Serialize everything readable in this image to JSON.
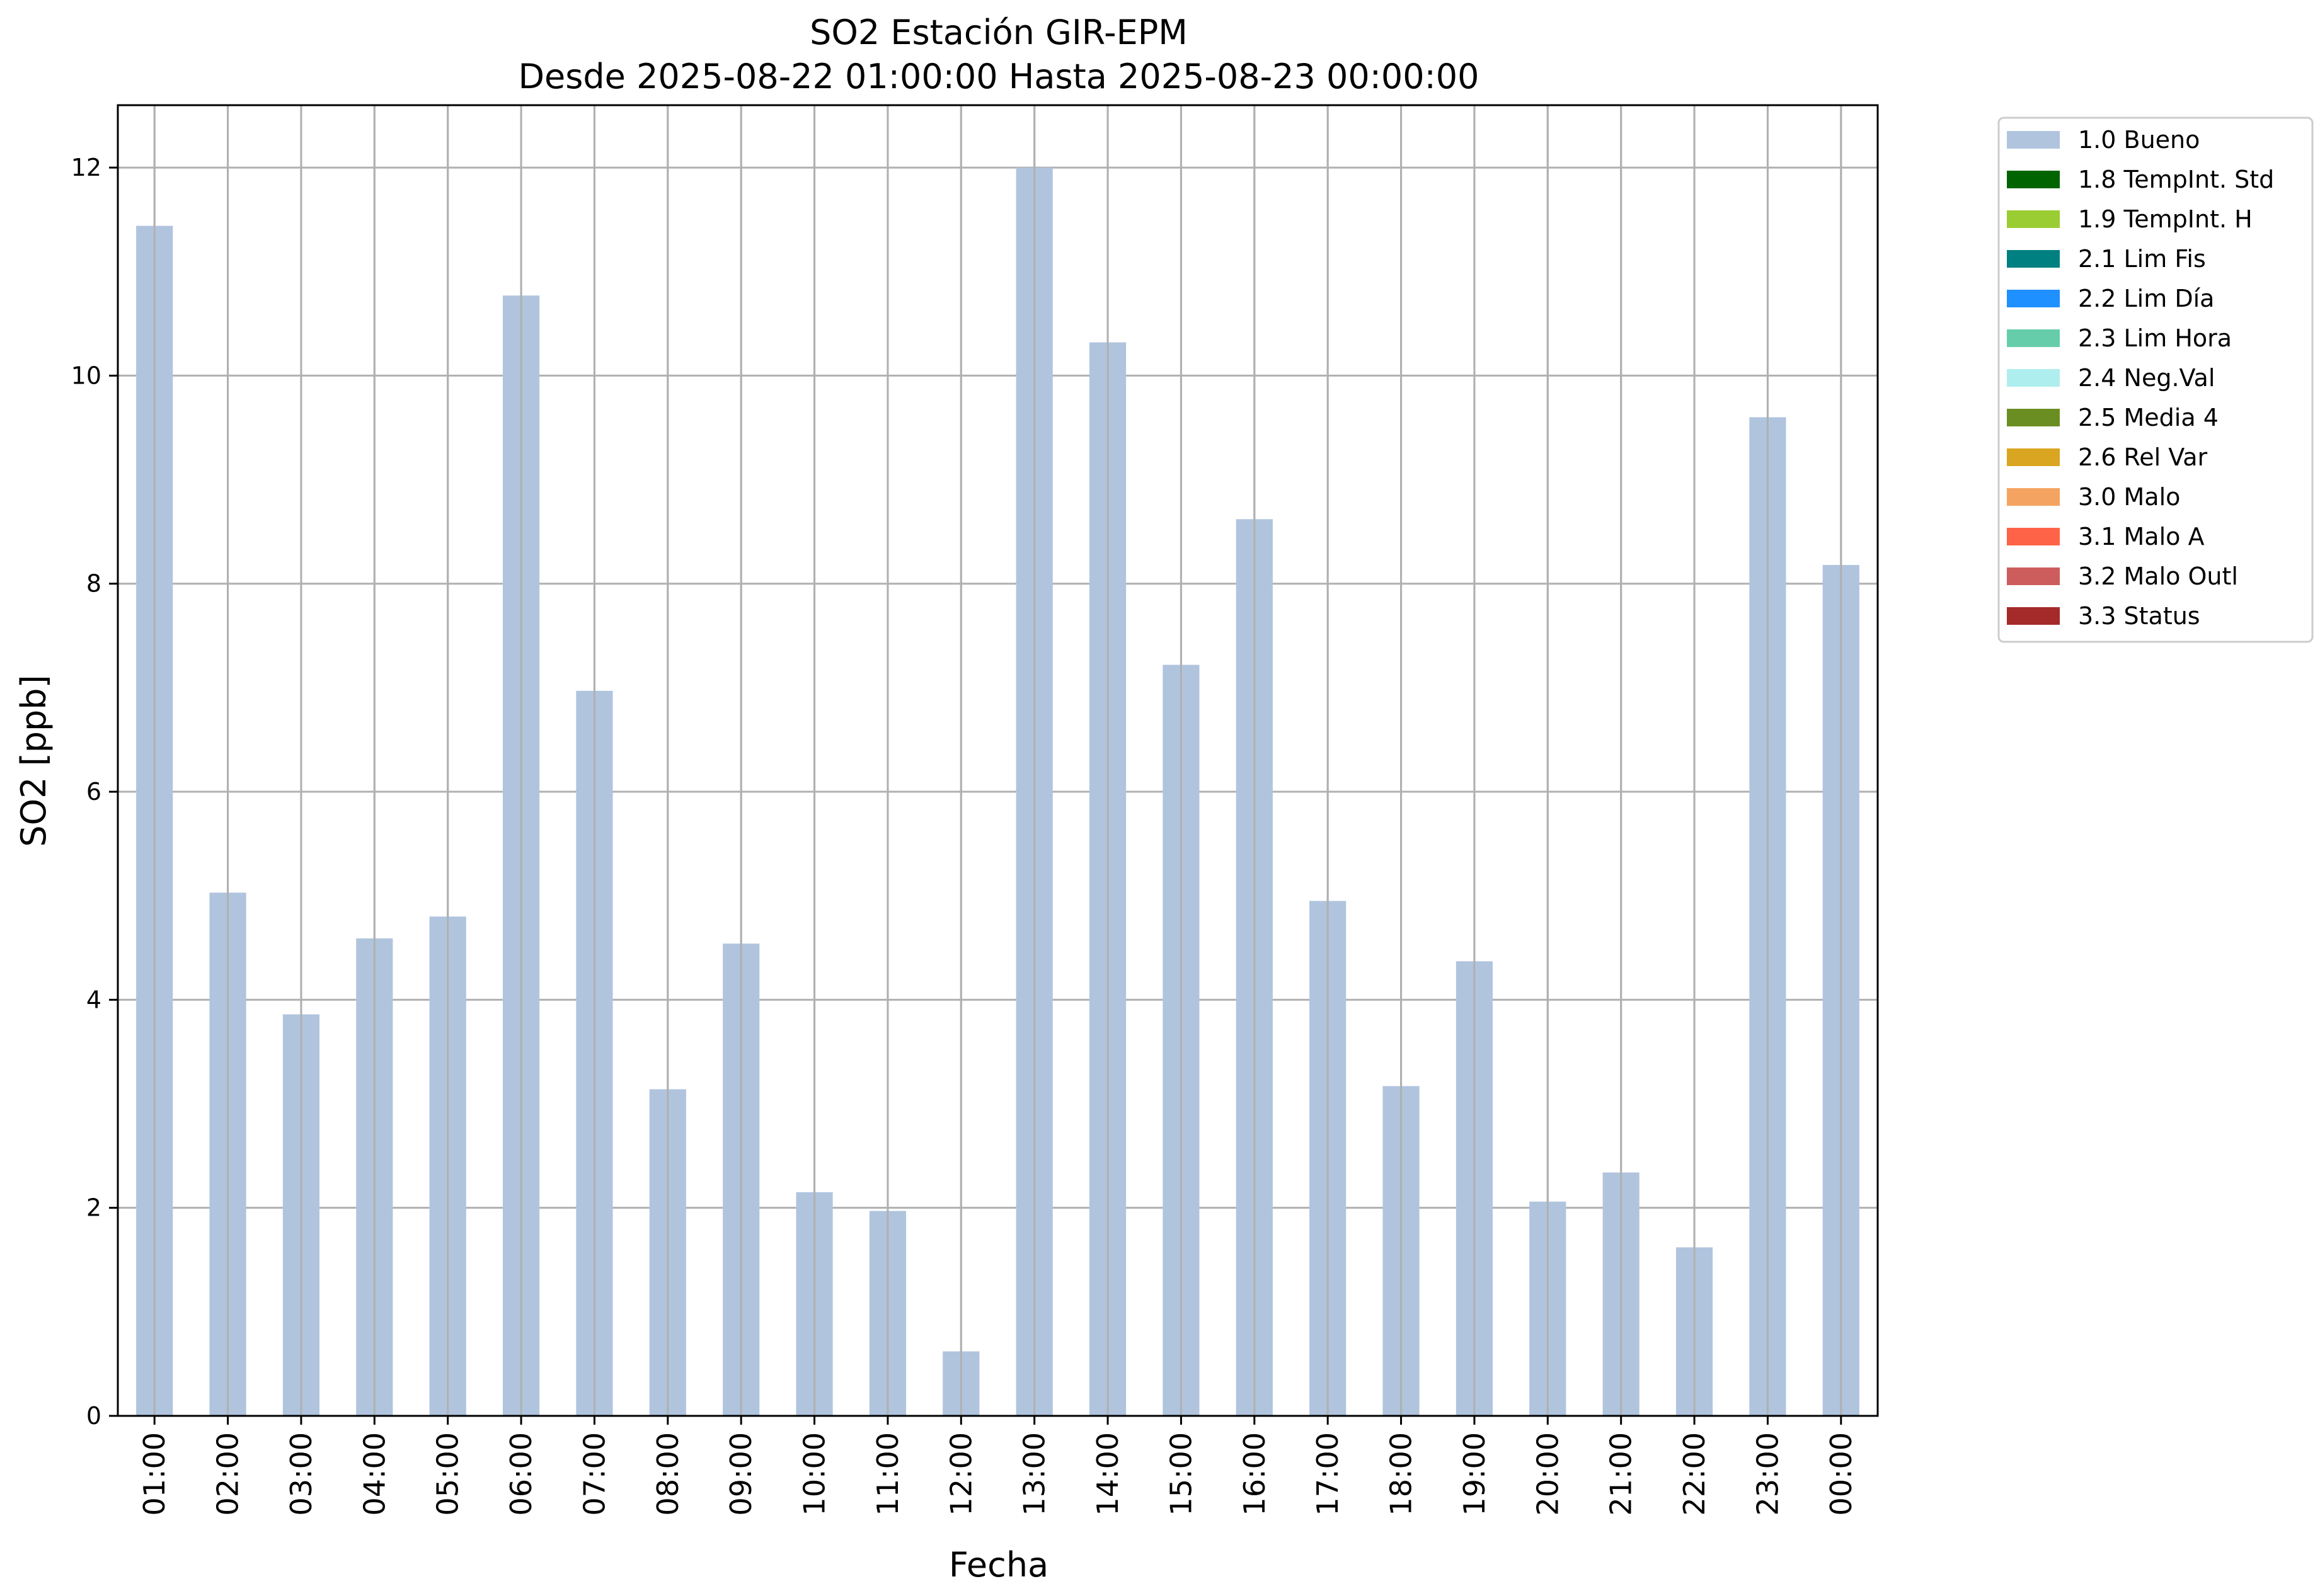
{
  "chart_data": {
    "type": "bar",
    "title": "SO2 Estación GIR-EPM",
    "subtitle": "Desde 2025-08-22 01:00:00 Hasta 2025-08-23 00:00:00",
    "xlabel": "Fecha",
    "ylabel": "SO2 [ppb]",
    "ylim": [
      0,
      12.6
    ],
    "yticks": [
      0,
      2,
      4,
      6,
      8,
      10,
      12
    ],
    "grid": true,
    "legend_position": "outside-top-right",
    "categories": [
      "01:00",
      "02:00",
      "03:00",
      "04:00",
      "05:00",
      "06:00",
      "07:00",
      "08:00",
      "09:00",
      "10:00",
      "11:00",
      "12:00",
      "13:00",
      "14:00",
      "15:00",
      "16:00",
      "17:00",
      "18:00",
      "19:00",
      "20:00",
      "21:00",
      "22:00",
      "23:00",
      "00:00"
    ],
    "series": [
      {
        "name": "1.0 Bueno",
        "color": "#b0c4de",
        "values": [
          11.44,
          5.03,
          3.86,
          4.59,
          4.8,
          10.77,
          6.97,
          3.14,
          4.54,
          2.15,
          1.97,
          0.62,
          12.0,
          10.32,
          7.22,
          8.62,
          4.95,
          3.17,
          4.37,
          2.06,
          2.34,
          1.62,
          9.6,
          8.18
        ]
      }
    ],
    "legend": [
      {
        "label": "1.0 Bueno",
        "color": "#b0c4de"
      },
      {
        "label": "1.8 TempInt. Std",
        "color": "#006400"
      },
      {
        "label": "1.9 TempInt. H",
        "color": "#9acd32"
      },
      {
        "label": "2.1 Lim Fis",
        "color": "#008080"
      },
      {
        "label": "2.2 Lim Día",
        "color": "#1e90ff"
      },
      {
        "label": "2.3 Lim Hora",
        "color": "#66cdaa"
      },
      {
        "label": "2.4 Neg.Val",
        "color": "#afeeee"
      },
      {
        "label": "2.5 Media 4",
        "color": "#6b8e23"
      },
      {
        "label": "2.6 Rel Var",
        "color": "#daa520"
      },
      {
        "label": "3.0 Malo",
        "color": "#f4a460"
      },
      {
        "label": "3.1 Malo A",
        "color": "#ff6347"
      },
      {
        "label": "3.2 Malo Outl",
        "color": "#cd5c5c"
      },
      {
        "label": "3.3 Status",
        "color": "#a52a2a"
      }
    ]
  }
}
